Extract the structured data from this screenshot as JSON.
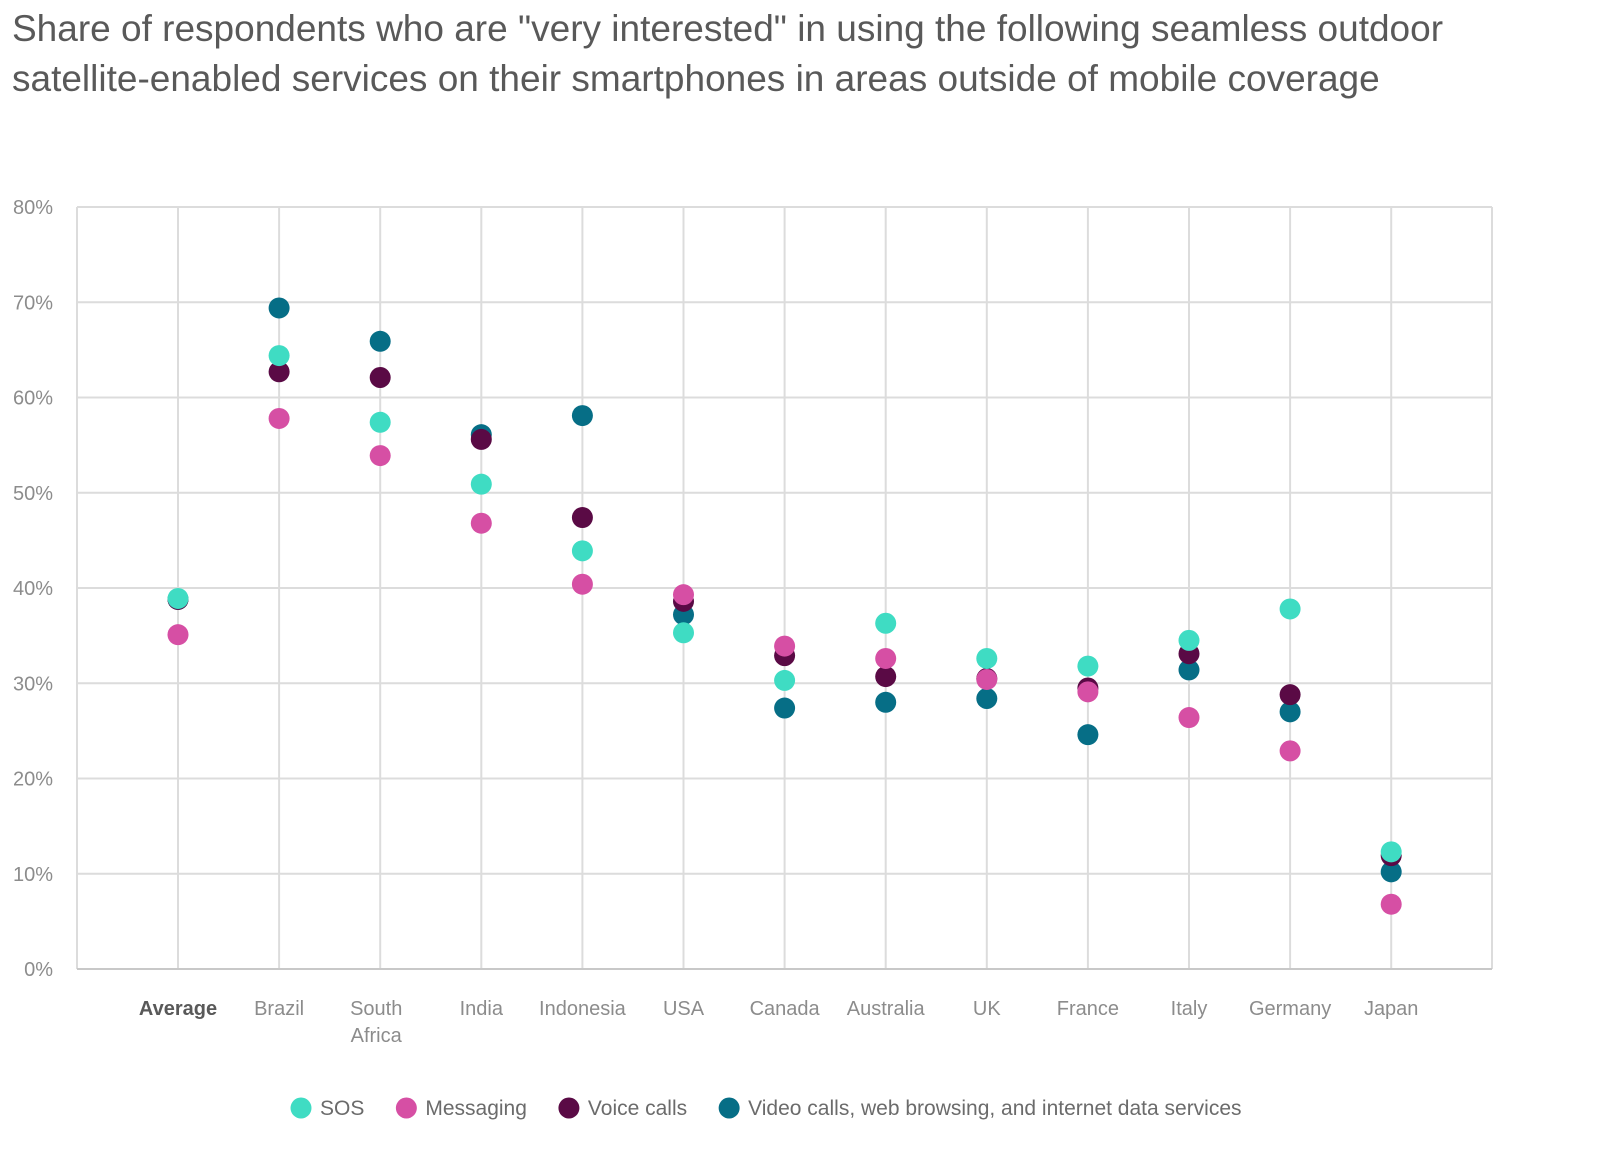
{
  "title_lines": [
    "Share of respondents who are \"very interested\" in using the following  seamless outdoor",
    "satellite-enabled services on their smartphones in areas outside of mobile coverage"
  ],
  "colors": {
    "SOS": "#3fdcc3",
    "Messaging": "#d64fa4",
    "Voice calls": "#5a0a45",
    "Video calls, web browsing, and internet data services": "#066e86",
    "grid": "#dcdcdc",
    "axis": "#c8c8c8"
  },
  "chart_data": {
    "type": "scatter",
    "title": "Share of respondents who are \"very interested\" in using the following  seamless outdoor satellite-enabled services on their smartphones in areas outside of mobile coverage",
    "xlabel": "",
    "ylabel": "",
    "ylim": [
      0,
      80
    ],
    "yticks": [
      0,
      10,
      20,
      30,
      40,
      50,
      60,
      70,
      80
    ],
    "ytick_labels": [
      "0%",
      "10%",
      "20%",
      "30%",
      "40%",
      "50%",
      "60%",
      "70%",
      "80%"
    ],
    "grid": true,
    "legend_position": "bottom",
    "categories": [
      {
        "name": "Average",
        "lines": [
          "Average"
        ],
        "bold": true
      },
      {
        "name": "Brazil",
        "lines": [
          "Brazil"
        ]
      },
      {
        "name": "South Africa",
        "lines": [
          "South",
          "Africa"
        ]
      },
      {
        "name": "India",
        "lines": [
          "India"
        ]
      },
      {
        "name": "Indonesia",
        "lines": [
          "Indonesia"
        ]
      },
      {
        "name": "USA",
        "lines": [
          "USA"
        ]
      },
      {
        "name": "Canada",
        "lines": [
          "Canada"
        ]
      },
      {
        "name": "Australia",
        "lines": [
          "Australia"
        ]
      },
      {
        "name": "UK",
        "lines": [
          "UK"
        ]
      },
      {
        "name": "France",
        "lines": [
          "France"
        ]
      },
      {
        "name": "Italy",
        "lines": [
          "Italy"
        ]
      },
      {
        "name": "Germany",
        "lines": [
          "Germany"
        ]
      },
      {
        "name": "Japan",
        "lines": [
          "Japan"
        ]
      }
    ],
    "series": [
      {
        "name": "Video calls, web browsing, and internet data services",
        "values": [
          38.8,
          69.4,
          65.9,
          56.1,
          58.1,
          37.2,
          27.4,
          28.0,
          28.4,
          24.6,
          31.4,
          27.0,
          10.2
        ]
      },
      {
        "name": "Voice calls",
        "values": [
          38.8,
          62.7,
          62.1,
          55.6,
          47.4,
          38.6,
          32.9,
          30.7,
          30.5,
          29.5,
          33.1,
          28.8,
          11.9
        ]
      },
      {
        "name": "Messaging",
        "values": [
          35.1,
          57.8,
          53.9,
          46.8,
          40.4,
          39.3,
          33.9,
          32.6,
          30.4,
          29.1,
          26.4,
          22.9,
          6.8
        ]
      },
      {
        "name": "SOS",
        "values": [
          38.9,
          64.4,
          57.4,
          50.9,
          43.9,
          35.3,
          30.3,
          36.3,
          32.6,
          31.8,
          34.5,
          37.8,
          12.3
        ]
      }
    ],
    "legend": [
      "SOS",
      "Messaging",
      "Voice calls",
      "Video calls, web browsing, and internet data services"
    ]
  }
}
